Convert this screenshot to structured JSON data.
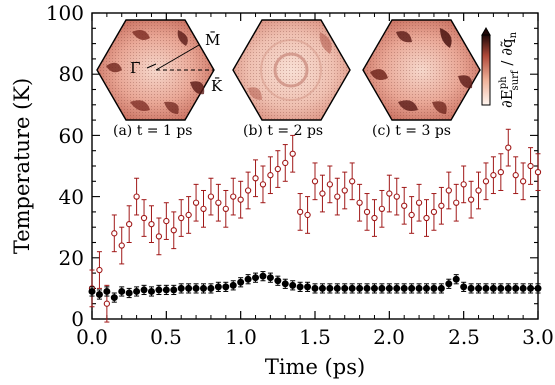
{
  "chart_data": {
    "type": "scatter",
    "xlabel": "Time (ps)",
    "ylabel": "Temperature (K)",
    "xlim": [
      0.0,
      3.0
    ],
    "ylim": [
      0,
      100
    ],
    "x_ticks": [
      "0.0",
      "0.5",
      "1.0",
      "1.5",
      "2.0",
      "2.5",
      "3.0"
    ],
    "y_ticks": [
      "0",
      "20",
      "40",
      "60",
      "80",
      "100"
    ],
    "series": [
      {
        "marker": "open-circle",
        "color": "#a01818",
        "errorbars": true,
        "x": [
          0.0,
          0.05,
          0.1,
          0.15,
          0.2,
          0.25,
          0.3,
          0.35,
          0.4,
          0.45,
          0.5,
          0.55,
          0.6,
          0.65,
          0.7,
          0.75,
          0.8,
          0.85,
          0.9,
          0.95,
          1.0,
          1.05,
          1.1,
          1.15,
          1.2,
          1.25,
          1.3,
          1.35,
          1.4,
          1.45,
          1.5,
          1.55,
          1.6,
          1.65,
          1.7,
          1.75,
          1.8,
          1.85,
          1.9,
          1.95,
          2.0,
          2.05,
          2.1,
          2.15,
          2.2,
          2.25,
          2.3,
          2.35,
          2.4,
          2.45,
          2.5,
          2.55,
          2.6,
          2.65,
          2.7,
          2.75,
          2.8,
          2.85,
          2.9,
          2.95,
          3.0
        ],
        "y": [
          10,
          16,
          5,
          28,
          24,
          31,
          40,
          33,
          31,
          27,
          32,
          29,
          33,
          34,
          38,
          36,
          40,
          38,
          36,
          40,
          39,
          42,
          46,
          44,
          47,
          49,
          51,
          54,
          35,
          34,
          45,
          41,
          44,
          40,
          42,
          45,
          38,
          35,
          33,
          36,
          41,
          40,
          37,
          34,
          38,
          33,
          35,
          37,
          42,
          38,
          44,
          39,
          42,
          45,
          47,
          48,
          56,
          47,
          45,
          50,
          48
        ]
      },
      {
        "marker": "filled-circle",
        "color": "#000000",
        "errorbars": true,
        "x": [
          0.0,
          0.05,
          0.1,
          0.15,
          0.2,
          0.25,
          0.3,
          0.35,
          0.4,
          0.45,
          0.5,
          0.55,
          0.6,
          0.65,
          0.7,
          0.75,
          0.8,
          0.85,
          0.9,
          0.95,
          1.0,
          1.05,
          1.1,
          1.15,
          1.2,
          1.25,
          1.3,
          1.35,
          1.4,
          1.45,
          1.5,
          1.55,
          1.6,
          1.65,
          1.7,
          1.75,
          1.8,
          1.85,
          1.9,
          1.95,
          2.0,
          2.05,
          2.1,
          2.15,
          2.2,
          2.25,
          2.3,
          2.35,
          2.4,
          2.45,
          2.5,
          2.55,
          2.6,
          2.65,
          2.7,
          2.75,
          2.8,
          2.85,
          2.9,
          2.95,
          3.0
        ],
        "y": [
          9,
          8,
          9,
          7,
          9,
          8.5,
          9,
          9.5,
          9,
          9.5,
          9.5,
          9.5,
          10,
          10,
          10,
          10,
          10,
          10.5,
          10.5,
          11,
          12,
          13,
          13.5,
          14,
          13.5,
          12.5,
          11.5,
          11,
          10.5,
          10.5,
          10,
          10,
          10,
          10,
          10,
          10,
          10,
          10,
          10,
          10,
          10,
          10,
          10,
          10,
          10,
          10,
          10,
          10,
          11.5,
          13,
          10.5,
          10,
          10,
          10,
          10,
          10,
          10,
          10,
          10,
          10,
          10
        ]
      }
    ],
    "insets": [
      {
        "label": "(a) t = 1 ps"
      },
      {
        "label": "(b) t = 2 ps"
      },
      {
        "label": "(c) t = 3 ps"
      }
    ],
    "inset_points": [
      "M̄",
      "Γ̄",
      "K̄"
    ],
    "colorbar_label": "∂E",
    "colorbar_sup": "ph",
    "colorbar_sub": "surf",
    "colorbar_denominator": " / ∂q̃",
    "colorbar_denominator_sub": "n"
  }
}
